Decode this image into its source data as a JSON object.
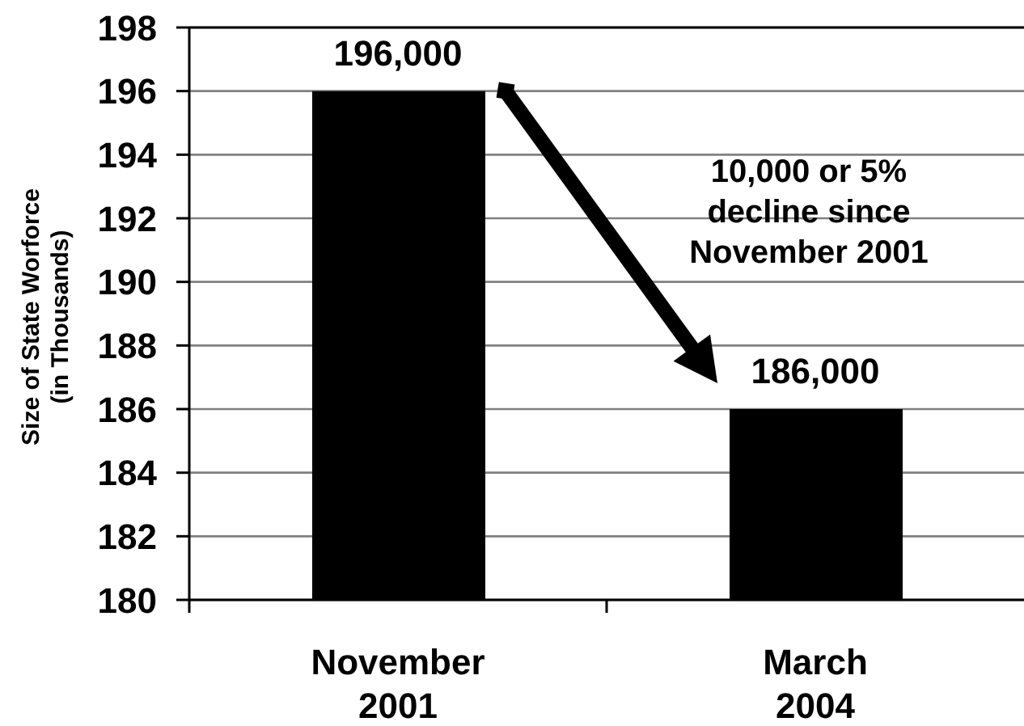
{
  "chart_data": {
    "type": "bar",
    "ylabel": "Size of State Worforce\n(in Thousands)",
    "categories": [
      "November\n2001",
      "March\n2004"
    ],
    "values": [
      196,
      186
    ],
    "color": "#000000",
    "ylim": [
      180,
      198
    ],
    "yticks": [
      180,
      182,
      184,
      186,
      188,
      190,
      192,
      194,
      196,
      198
    ],
    "grid": "y",
    "annotations": [
      {
        "text": "196,000",
        "x": "November\n2001",
        "y": 196
      },
      {
        "text": "186,000",
        "x": "March\n2004",
        "y": 186
      },
      "10,000 or 5%\ndecline since\nNovember 2001"
    ]
  }
}
